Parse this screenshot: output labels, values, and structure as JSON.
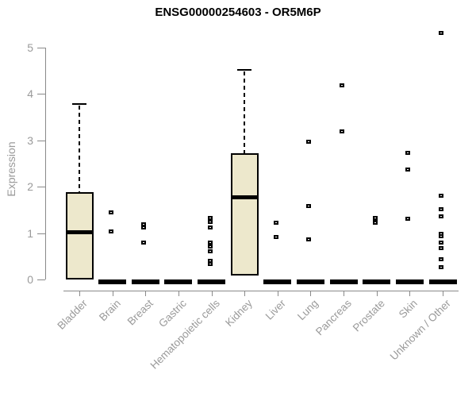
{
  "chart_data": {
    "type": "boxplot",
    "title": "ENSG00000254603 - OR5M6P",
    "xlabel": "",
    "ylabel": "Expression",
    "ylim": [
      0,
      5.4
    ],
    "yticks": [
      0,
      1,
      2,
      3,
      4,
      5
    ],
    "grid": false,
    "legend": "none",
    "colors": {
      "box_fill": "#EDE8CC",
      "box_border": "#000000",
      "median": "#000000",
      "point": "#000000",
      "axis": "#8a8a8a",
      "tick_label": "#9a9a9a",
      "title": "#000000",
      "background": "#ffffff"
    },
    "categories": [
      "Bladder",
      "Brain",
      "Breast",
      "Gastric",
      "Hematopoietic cells",
      "Kidney",
      "Liver",
      "Lung",
      "Pancreas",
      "Prostate",
      "Skin",
      "Unknown / Other"
    ],
    "boxes": [
      {
        "category": "Bladder",
        "q1": 0.0,
        "median": 1.02,
        "q3": 1.88,
        "whisker_low": 0.0,
        "whisker_high": 3.78
      },
      {
        "category": "Kidney",
        "q1": 0.09,
        "median": 1.78,
        "q3": 2.72,
        "whisker_low": 0.09,
        "whisker_high": 4.52
      }
    ],
    "zero_bar_categories": [
      "Brain",
      "Breast",
      "Gastric",
      "Hematopoietic cells",
      "Liver",
      "Lung",
      "Pancreas",
      "Prostate",
      "Skin",
      "Unknown / Other"
    ],
    "points": [
      {
        "category": "Brain",
        "values": [
          1.44,
          1.02
        ]
      },
      {
        "category": "Breast",
        "values": [
          1.18,
          1.11,
          0.78
        ]
      },
      {
        "category": "Hematopoietic cells",
        "values": [
          1.31,
          1.24,
          1.12,
          0.78,
          0.71,
          0.6,
          0.4,
          0.33
        ]
      },
      {
        "category": "Liver",
        "values": [
          1.22,
          0.9
        ]
      },
      {
        "category": "Lung",
        "values": [
          2.97,
          1.57,
          0.85
        ]
      },
      {
        "category": "Pancreas",
        "values": [
          4.17,
          3.19
        ]
      },
      {
        "category": "Prostate",
        "values": [
          1.31,
          1.25,
          1.21
        ]
      },
      {
        "category": "Skin",
        "values": [
          2.73,
          2.36,
          1.3
        ]
      },
      {
        "category": "Unknown / Other",
        "values": [
          5.31,
          1.8,
          1.51,
          1.35,
          0.97,
          0.92,
          0.78,
          0.67,
          0.43,
          0.26
        ]
      }
    ]
  }
}
